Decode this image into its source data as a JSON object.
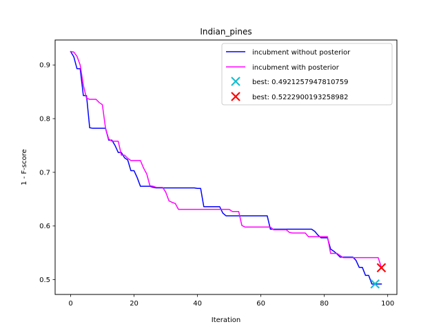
{
  "chart_data": {
    "type": "line",
    "title": "Indian_pines",
    "xlabel": "Iteration",
    "ylabel": "1 - F-score",
    "xlim": [
      -4.9,
      102.9
    ],
    "ylim": [
      0.4725,
      0.9465
    ],
    "xticks": [
      0,
      20,
      40,
      60,
      80,
      100
    ],
    "yticks": [
      0.5,
      0.6,
      0.7,
      0.8,
      0.9
    ],
    "xtick_labels": [
      "0",
      "20",
      "40",
      "60",
      "80",
      "100"
    ],
    "ytick_labels": [
      "0.5",
      "0.6",
      "0.7",
      "0.8",
      "0.9"
    ],
    "grid": false,
    "legend_position": "top-right",
    "series": [
      {
        "name": "incubment without posterior",
        "color": "#0000ff",
        "x": [
          0,
          1,
          2,
          3,
          4,
          5,
          6,
          7,
          8,
          9,
          10,
          11,
          12,
          13,
          14,
          15,
          16,
          17,
          18,
          19,
          20,
          21,
          22,
          23,
          24,
          25,
          26,
          27,
          28,
          29,
          30,
          31,
          32,
          33,
          34,
          35,
          36,
          37,
          38,
          39,
          40,
          41,
          42,
          43,
          44,
          45,
          46,
          47,
          48,
          49,
          50,
          51,
          52,
          53,
          54,
          55,
          56,
          57,
          58,
          59,
          60,
          61,
          62,
          63,
          64,
          65,
          66,
          67,
          68,
          69,
          70,
          71,
          72,
          73,
          74,
          75,
          76,
          77,
          78,
          79,
          80,
          81,
          82,
          83,
          84,
          85,
          86,
          87,
          88,
          89,
          90,
          91,
          92,
          93,
          94,
          95,
          96,
          97,
          98
        ],
        "y": [
          0.925,
          0.915,
          0.893,
          0.893,
          0.843,
          0.843,
          0.783,
          0.782,
          0.782,
          0.782,
          0.782,
          0.782,
          0.76,
          0.76,
          0.75,
          0.737,
          0.737,
          0.727,
          0.723,
          0.703,
          0.703,
          0.69,
          0.674,
          0.674,
          0.674,
          0.674,
          0.672,
          0.671,
          0.671,
          0.671,
          0.671,
          0.671,
          0.671,
          0.671,
          0.671,
          0.671,
          0.671,
          0.671,
          0.671,
          0.671,
          0.67,
          0.67,
          0.636,
          0.636,
          0.636,
          0.636,
          0.636,
          0.636,
          0.624,
          0.619,
          0.619,
          0.619,
          0.619,
          0.619,
          0.619,
          0.619,
          0.619,
          0.619,
          0.619,
          0.619,
          0.619,
          0.619,
          0.619,
          0.594,
          0.594,
          0.594,
          0.594,
          0.594,
          0.594,
          0.594,
          0.594,
          0.594,
          0.594,
          0.594,
          0.594,
          0.594,
          0.594,
          0.59,
          0.583,
          0.578,
          0.578,
          0.578,
          0.557,
          0.553,
          0.548,
          0.542,
          0.542,
          0.542,
          0.542,
          0.542,
          0.536,
          0.523,
          0.523,
          0.508,
          0.508,
          0.492,
          0.492,
          0.492,
          0.492
        ]
      },
      {
        "name": "incubment with posterior",
        "color": "#ff00ff",
        "x": [
          0,
          1,
          2,
          3,
          4,
          5,
          6,
          7,
          8,
          9,
          10,
          11,
          12,
          13,
          14,
          15,
          16,
          17,
          18,
          19,
          20,
          21,
          22,
          23,
          24,
          25,
          26,
          27,
          28,
          29,
          30,
          31,
          32,
          33,
          34,
          35,
          36,
          37,
          38,
          39,
          40,
          41,
          42,
          43,
          44,
          45,
          46,
          47,
          48,
          49,
          50,
          51,
          52,
          53,
          54,
          55,
          56,
          57,
          58,
          59,
          60,
          61,
          62,
          63,
          64,
          65,
          66,
          67,
          68,
          69,
          70,
          71,
          72,
          73,
          74,
          75,
          76,
          77,
          78,
          79,
          80,
          81,
          82,
          83,
          84,
          85,
          86,
          87,
          88,
          89,
          90,
          91,
          92,
          93,
          94,
          95,
          96,
          97,
          98
        ],
        "y": [
          0.925,
          0.924,
          0.916,
          0.9,
          0.862,
          0.838,
          0.836,
          0.836,
          0.836,
          0.83,
          0.826,
          0.782,
          0.762,
          0.758,
          0.758,
          0.758,
          0.732,
          0.732,
          0.726,
          0.722,
          0.722,
          0.722,
          0.722,
          0.708,
          0.697,
          0.675,
          0.674,
          0.672,
          0.672,
          0.672,
          0.663,
          0.647,
          0.644,
          0.642,
          0.631,
          0.631,
          0.631,
          0.631,
          0.631,
          0.631,
          0.631,
          0.631,
          0.631,
          0.631,
          0.631,
          0.631,
          0.631,
          0.631,
          0.631,
          0.631,
          0.631,
          0.627,
          0.627,
          0.627,
          0.601,
          0.598,
          0.598,
          0.598,
          0.598,
          0.598,
          0.598,
          0.598,
          0.598,
          0.598,
          0.593,
          0.593,
          0.593,
          0.593,
          0.593,
          0.588,
          0.587,
          0.587,
          0.587,
          0.587,
          0.587,
          0.58,
          0.58,
          0.58,
          0.58,
          0.58,
          0.58,
          0.58,
          0.549,
          0.549,
          0.549,
          0.545,
          0.541,
          0.541,
          0.541,
          0.541,
          0.541,
          0.541,
          0.541,
          0.541,
          0.541,
          0.541,
          0.541,
          0.541,
          0.523
        ]
      }
    ],
    "markers": [
      {
        "name": "best: 0.4921257947810759",
        "color": "#17becf",
        "x": 96,
        "y": 0.4921257947810759,
        "symbol": "x"
      },
      {
        "name": "best: 0.5222900193258982",
        "color": "#ff0000",
        "x": 98,
        "y": 0.5222900193258982,
        "symbol": "x"
      }
    ]
  }
}
